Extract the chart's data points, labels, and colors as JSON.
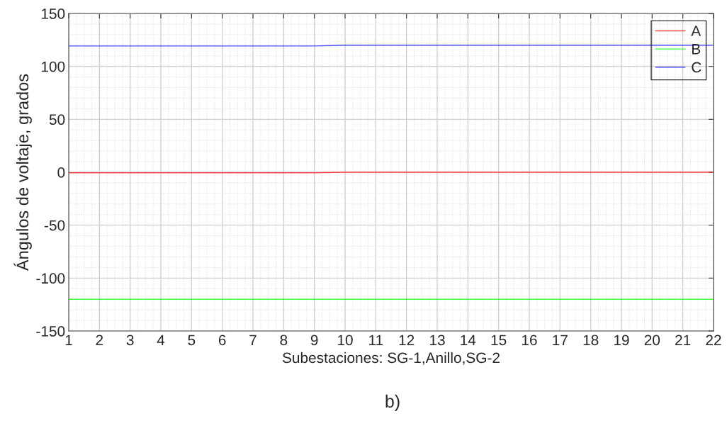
{
  "chart_data": {
    "type": "line",
    "xlabel": "Subestaciones: SG-1,Anillo,SG-2",
    "ylabel": "Ángulos de voltaje, grados",
    "x": [
      1,
      2,
      3,
      4,
      5,
      6,
      7,
      8,
      9,
      10,
      11,
      12,
      13,
      14,
      15,
      16,
      17,
      18,
      19,
      20,
      21,
      22
    ],
    "series": [
      {
        "name": "A",
        "color": "#ff0000",
        "values": [
          -0.5,
          -0.5,
          -0.5,
          -0.5,
          -0.5,
          -0.5,
          -0.5,
          -0.5,
          -0.5,
          0,
          0,
          0,
          0,
          0,
          0,
          0,
          0,
          0,
          0,
          0,
          0,
          0
        ]
      },
      {
        "name": "B",
        "color": "#00ff00",
        "values": [
          -120,
          -120,
          -120,
          -120,
          -120,
          -120,
          -120,
          -120,
          -120,
          -120,
          -120,
          -120,
          -120,
          -120,
          -120,
          -120,
          -120,
          -120,
          -120,
          -120,
          -120,
          -120
        ]
      },
      {
        "name": "C",
        "color": "#0000ff",
        "values": [
          119.3,
          119.3,
          119.3,
          119.3,
          119.3,
          119.3,
          119.3,
          119.3,
          119.3,
          120,
          120,
          120,
          120,
          120,
          120,
          120,
          120,
          120,
          120,
          120,
          120,
          120
        ]
      }
    ],
    "xlim": [
      1,
      22
    ],
    "xticks": [
      1,
      2,
      3,
      4,
      5,
      6,
      7,
      8,
      9,
      10,
      11,
      12,
      13,
      14,
      15,
      16,
      17,
      18,
      19,
      20,
      21,
      22
    ],
    "ylim": [
      -150,
      150
    ],
    "yticks": [
      -150,
      -100,
      -50,
      0,
      50,
      100,
      150
    ],
    "grid": true,
    "legend": "top right",
    "line_style": "solid",
    "marker": "none",
    "annotations": [
      "b)"
    ]
  }
}
